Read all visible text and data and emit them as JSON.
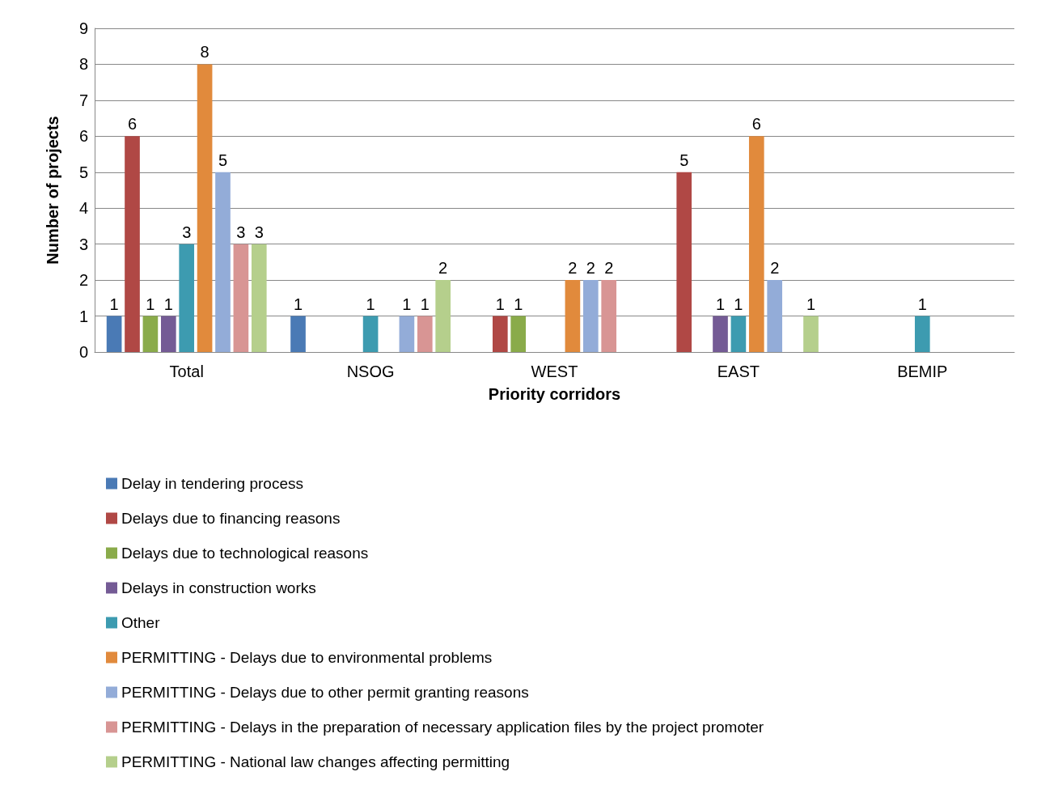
{
  "chart_data": {
    "type": "bar",
    "xlabel": "Priority corridors",
    "ylabel": "Number of projects",
    "categories": [
      "Total",
      "NSOG",
      "WEST",
      "EAST",
      "BEMIP"
    ],
    "series": [
      {
        "name": "Delay in tendering process",
        "color": "#4a7ab5",
        "values": [
          1,
          1,
          null,
          null,
          null
        ]
      },
      {
        "name": "Delays due to financing reasons",
        "color": "#b04845",
        "values": [
          6,
          null,
          1,
          5,
          null
        ]
      },
      {
        "name": "Delays due to technological reasons",
        "color": "#8aab4a",
        "values": [
          1,
          null,
          1,
          null,
          null
        ]
      },
      {
        "name": "Delays in construction works",
        "color": "#745b95",
        "values": [
          1,
          null,
          null,
          1,
          null
        ]
      },
      {
        "name": "Other",
        "color": "#3d9bb0",
        "values": [
          3,
          1,
          null,
          1,
          1
        ]
      },
      {
        "name": "PERMITTING - Delays due to environmental problems",
        "color": "#e18a3c",
        "values": [
          8,
          null,
          2,
          6,
          null
        ]
      },
      {
        "name": "PERMITTING - Delays due to other permit granting reasons",
        "color": "#93acd8",
        "values": [
          5,
          1,
          2,
          2,
          null
        ]
      },
      {
        "name": "PERMITTING - Delays in the preparation of necessary application files by the project promoter",
        "color": "#d89594",
        "values": [
          3,
          1,
          2,
          null,
          null
        ]
      },
      {
        "name": "PERMITTING - National law changes affecting permitting",
        "color": "#b5cf8c",
        "values": [
          3,
          2,
          null,
          1,
          null
        ]
      }
    ],
    "ylim": [
      0,
      9
    ],
    "yticks": [
      0,
      1,
      2,
      3,
      4,
      5,
      6,
      7,
      8,
      9
    ],
    "grid": "y",
    "data_labels": true,
    "legend": "bottom"
  }
}
